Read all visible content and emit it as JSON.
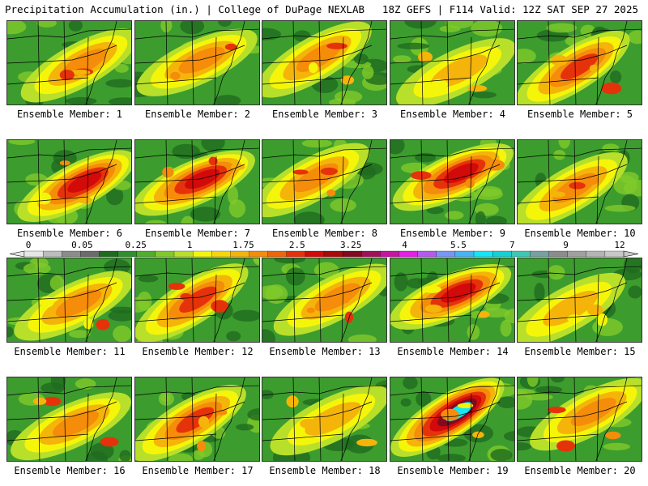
{
  "header": {
    "left": "Precipitation Accumulation (in.) | College of DuPage NEXLAB",
    "right": "18Z GEFS | F114 Valid: 12Z SAT SEP 27 2025"
  },
  "chart_data": {
    "type": "heatmap",
    "title": "Precipitation Accumulation (in.)",
    "source": "College of DuPage NEXLAB",
    "model": "18Z GEFS",
    "forecast_hour": "F114",
    "valid": "12Z SAT SEP 27 2025",
    "units": "in.",
    "colorbar": {
      "tick_labels": [
        "0",
        "0.05",
        "0.25",
        "1",
        "1.75",
        "2.5",
        "3.25",
        "4",
        "5.5",
        "7",
        "9",
        "12"
      ],
      "colors": [
        "#e6e6e6",
        "#bdbdbd",
        "#8c8c8c",
        "#6b6b6b",
        "#1f6b1f",
        "#2f8f2f",
        "#4fae2c",
        "#7fca2a",
        "#b8e02a",
        "#f5f50a",
        "#f5d70a",
        "#f5b40a",
        "#f58c0a",
        "#f0640a",
        "#e6320a",
        "#d20a0a",
        "#aa0a0a",
        "#820a1e",
        "#a0105a",
        "#c814a0",
        "#e61ee6",
        "#b45af0",
        "#7896f5",
        "#46b4f5",
        "#14e6f5",
        "#14d2d2",
        "#3cc8b4",
        "#78a0a0",
        "#8c8c8c",
        "#a0a0a0",
        "#b4b4b4",
        "#c8c8c8"
      ]
    },
    "panels": [
      {
        "label": "Ensemble Member: 1",
        "max_in": 2.5
      },
      {
        "label": "Ensemble Member: 2",
        "max_in": 2.5
      },
      {
        "label": "Ensemble Member: 3",
        "max_in": 2.5
      },
      {
        "label": "Ensemble Member: 4",
        "max_in": 2.0
      },
      {
        "label": "Ensemble Member: 5",
        "max_in": 3.0
      },
      {
        "label": "Ensemble Member: 6",
        "max_in": 3.5
      },
      {
        "label": "Ensemble Member: 7",
        "max_in": 3.5
      },
      {
        "label": "Ensemble Member: 8",
        "max_in": 2.5
      },
      {
        "label": "Ensemble Member: 9",
        "max_in": 3.5
      },
      {
        "label": "Ensemble Member: 10",
        "max_in": 2.5
      },
      {
        "label": "Ensemble Member: 11",
        "max_in": 2.5
      },
      {
        "label": "Ensemble Member: 12",
        "max_in": 3.0
      },
      {
        "label": "Ensemble Member: 13",
        "max_in": 2.5
      },
      {
        "label": "Ensemble Member: 14",
        "max_in": 3.5
      },
      {
        "label": "Ensemble Member: 15",
        "max_in": 2.0
      },
      {
        "label": "Ensemble Member: 16",
        "max_in": 2.5
      },
      {
        "label": "Ensemble Member: 17",
        "max_in": 3.0
      },
      {
        "label": "Ensemble Member: 18",
        "max_in": 2.0
      },
      {
        "label": "Ensemble Member: 19",
        "max_in": 7.0
      },
      {
        "label": "Ensemble Member: 20",
        "max_in": 2.5
      }
    ]
  }
}
